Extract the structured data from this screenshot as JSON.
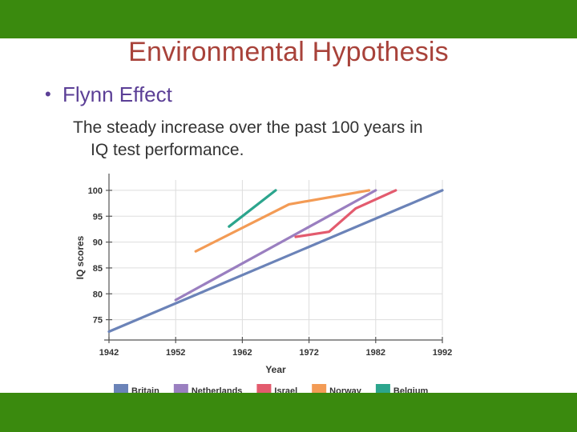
{
  "slide": {
    "title": "Environmental Hypothesis",
    "bullet": "Flynn Effect",
    "body_line1": "The steady increase over the past 100 years in",
    "body_line2": "IQ test performance."
  },
  "colors": {
    "banner": "#3a8a0e",
    "title": "#a8423a",
    "bullet": "#5b3f96"
  },
  "chart_data": {
    "type": "line",
    "title": "",
    "xlabel": "Year",
    "ylabel": "IQ scores",
    "xlim": [
      1942,
      1992
    ],
    "ylim": [
      72,
      102
    ],
    "x_ticks": [
      1942,
      1952,
      1962,
      1972,
      1982,
      1992
    ],
    "y_ticks": [
      75,
      80,
      85,
      90,
      95,
      100
    ],
    "legend_position": "bottom",
    "series": [
      {
        "name": "Britain",
        "color": "#6b83b8",
        "points": [
          [
            1942,
            72.7
          ],
          [
            1992,
            100
          ]
        ]
      },
      {
        "name": "Netherlands",
        "color": "#9a7fc0",
        "points": [
          [
            1952,
            78.8
          ],
          [
            1982,
            100
          ]
        ]
      },
      {
        "name": "Israel",
        "color": "#e35b6e",
        "points": [
          [
            1970,
            91
          ],
          [
            1975,
            92
          ],
          [
            1979,
            96.5
          ],
          [
            1985,
            100
          ]
        ]
      },
      {
        "name": "Norway",
        "color": "#f39b55",
        "points": [
          [
            1955,
            88.2
          ],
          [
            1969,
            97.3
          ],
          [
            1981,
            100
          ]
        ]
      },
      {
        "name": "Belgium",
        "color": "#2ca58d",
        "points": [
          [
            1960,
            93
          ],
          [
            1967,
            100
          ]
        ]
      }
    ]
  }
}
